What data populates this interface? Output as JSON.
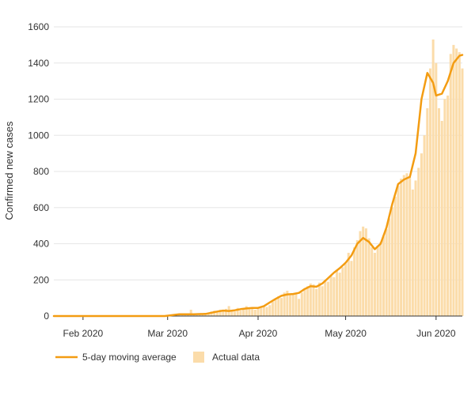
{
  "chart_data": {
    "type": "bar",
    "title": "",
    "xlabel": "",
    "ylabel": "Confirmed new cases",
    "ylim": [
      0,
      1600
    ],
    "yticks": [
      0,
      200,
      400,
      600,
      800,
      1000,
      1200,
      1400,
      1600
    ],
    "x_start": "2020-01-22",
    "x_end": "2020-06-10",
    "xticks": [
      {
        "date": "2020-02-01",
        "label": "Feb 2020"
      },
      {
        "date": "2020-03-01",
        "label": "Mar 2020"
      },
      {
        "date": "2020-04-01",
        "label": "Apr 2020"
      },
      {
        "date": "2020-05-01",
        "label": "May 2020"
      },
      {
        "date": "2020-06-01",
        "label": "Jun 2020"
      }
    ],
    "grid": true,
    "legend_position": "bottom-left",
    "colors": {
      "line": "#f39c12",
      "bars": "#fbdcaa",
      "grid": "#e6e6e6",
      "axis": "#333333"
    },
    "series": [
      {
        "name": "5-day moving average",
        "kind": "line",
        "x": [
          "2020-01-22",
          "2020-02-29",
          "2020-03-05",
          "2020-03-10",
          "2020-03-14",
          "2020-03-18",
          "2020-03-20",
          "2020-03-22",
          "2020-03-24",
          "2020-03-26",
          "2020-03-28",
          "2020-03-30",
          "2020-04-01",
          "2020-04-03",
          "2020-04-05",
          "2020-04-07",
          "2020-04-09",
          "2020-04-11",
          "2020-04-13",
          "2020-04-15",
          "2020-04-17",
          "2020-04-19",
          "2020-04-21",
          "2020-04-23",
          "2020-04-25",
          "2020-04-27",
          "2020-04-29",
          "2020-05-01",
          "2020-05-03",
          "2020-05-05",
          "2020-05-07",
          "2020-05-09",
          "2020-05-11",
          "2020-05-13",
          "2020-05-15",
          "2020-05-17",
          "2020-05-19",
          "2020-05-21",
          "2020-05-23",
          "2020-05-25",
          "2020-05-27",
          "2020-05-29",
          "2020-05-31",
          "2020-06-01",
          "2020-06-03",
          "2020-06-05",
          "2020-06-07",
          "2020-06-09",
          "2020-06-10"
        ],
        "values": [
          0,
          0,
          10,
          10,
          12,
          25,
          30,
          28,
          32,
          38,
          42,
          45,
          45,
          55,
          75,
          95,
          112,
          120,
          122,
          128,
          150,
          165,
          162,
          180,
          210,
          240,
          265,
          295,
          335,
          400,
          432,
          410,
          370,
          400,
          490,
          620,
          730,
          755,
          770,
          900,
          1200,
          1345,
          1290,
          1220,
          1230,
          1300,
          1400,
          1440,
          1445
        ]
      },
      {
        "name": "Actual data",
        "kind": "bar",
        "x": [
          "2020-02-28",
          "2020-03-01",
          "2020-03-03",
          "2020-03-05",
          "2020-03-06",
          "2020-03-07",
          "2020-03-08",
          "2020-03-09",
          "2020-03-10",
          "2020-03-11",
          "2020-03-12",
          "2020-03-13",
          "2020-03-14",
          "2020-03-15",
          "2020-03-16",
          "2020-03-17",
          "2020-03-18",
          "2020-03-19",
          "2020-03-20",
          "2020-03-21",
          "2020-03-22",
          "2020-03-23",
          "2020-03-24",
          "2020-03-25",
          "2020-03-26",
          "2020-03-27",
          "2020-03-28",
          "2020-03-29",
          "2020-03-30",
          "2020-03-31",
          "2020-04-01",
          "2020-04-02",
          "2020-04-03",
          "2020-04-04",
          "2020-04-05",
          "2020-04-06",
          "2020-04-07",
          "2020-04-08",
          "2020-04-09",
          "2020-04-10",
          "2020-04-11",
          "2020-04-12",
          "2020-04-13",
          "2020-04-14",
          "2020-04-15",
          "2020-04-16",
          "2020-04-17",
          "2020-04-18",
          "2020-04-19",
          "2020-04-20",
          "2020-04-21",
          "2020-04-22",
          "2020-04-23",
          "2020-04-24",
          "2020-04-25",
          "2020-04-26",
          "2020-04-27",
          "2020-04-28",
          "2020-04-29",
          "2020-04-30",
          "2020-05-01",
          "2020-05-02",
          "2020-05-03",
          "2020-05-04",
          "2020-05-05",
          "2020-05-06",
          "2020-05-07",
          "2020-05-08",
          "2020-05-09",
          "2020-05-10",
          "2020-05-11",
          "2020-05-12",
          "2020-05-13",
          "2020-05-14",
          "2020-05-15",
          "2020-05-16",
          "2020-05-17",
          "2020-05-18",
          "2020-05-19",
          "2020-05-20",
          "2020-05-21",
          "2020-05-22",
          "2020-05-23",
          "2020-05-24",
          "2020-05-25",
          "2020-05-26",
          "2020-05-27",
          "2020-05-28",
          "2020-05-29",
          "2020-05-30",
          "2020-05-31",
          "2020-06-01",
          "2020-06-02",
          "2020-06-03",
          "2020-06-04",
          "2020-06-05",
          "2020-06-06",
          "2020-06-07",
          "2020-06-08",
          "2020-06-09",
          "2020-06-10"
        ],
        "values": [
          2,
          5,
          8,
          12,
          10,
          8,
          15,
          35,
          10,
          5,
          8,
          10,
          12,
          15,
          25,
          30,
          20,
          35,
          25,
          40,
          55,
          30,
          25,
          45,
          30,
          35,
          55,
          40,
          45,
          35,
          50,
          45,
          55,
          50,
          60,
          80,
          95,
          110,
          100,
          130,
          140,
          115,
          120,
          125,
          95,
          130,
          150,
          165,
          180,
          175,
          150,
          185,
          165,
          200,
          190,
          225,
          215,
          250,
          240,
          270,
          290,
          350,
          305,
          380,
          420,
          470,
          495,
          485,
          430,
          380,
          350,
          390,
          410,
          440,
          480,
          540,
          600,
          660,
          720,
          760,
          780,
          790,
          770,
          700,
          750,
          820,
          900,
          1000,
          1150,
          1370,
          1530,
          1400,
          1150,
          1080,
          1200,
          1220,
          1450,
          1500,
          1480,
          1460,
          1370
        ]
      }
    ]
  }
}
